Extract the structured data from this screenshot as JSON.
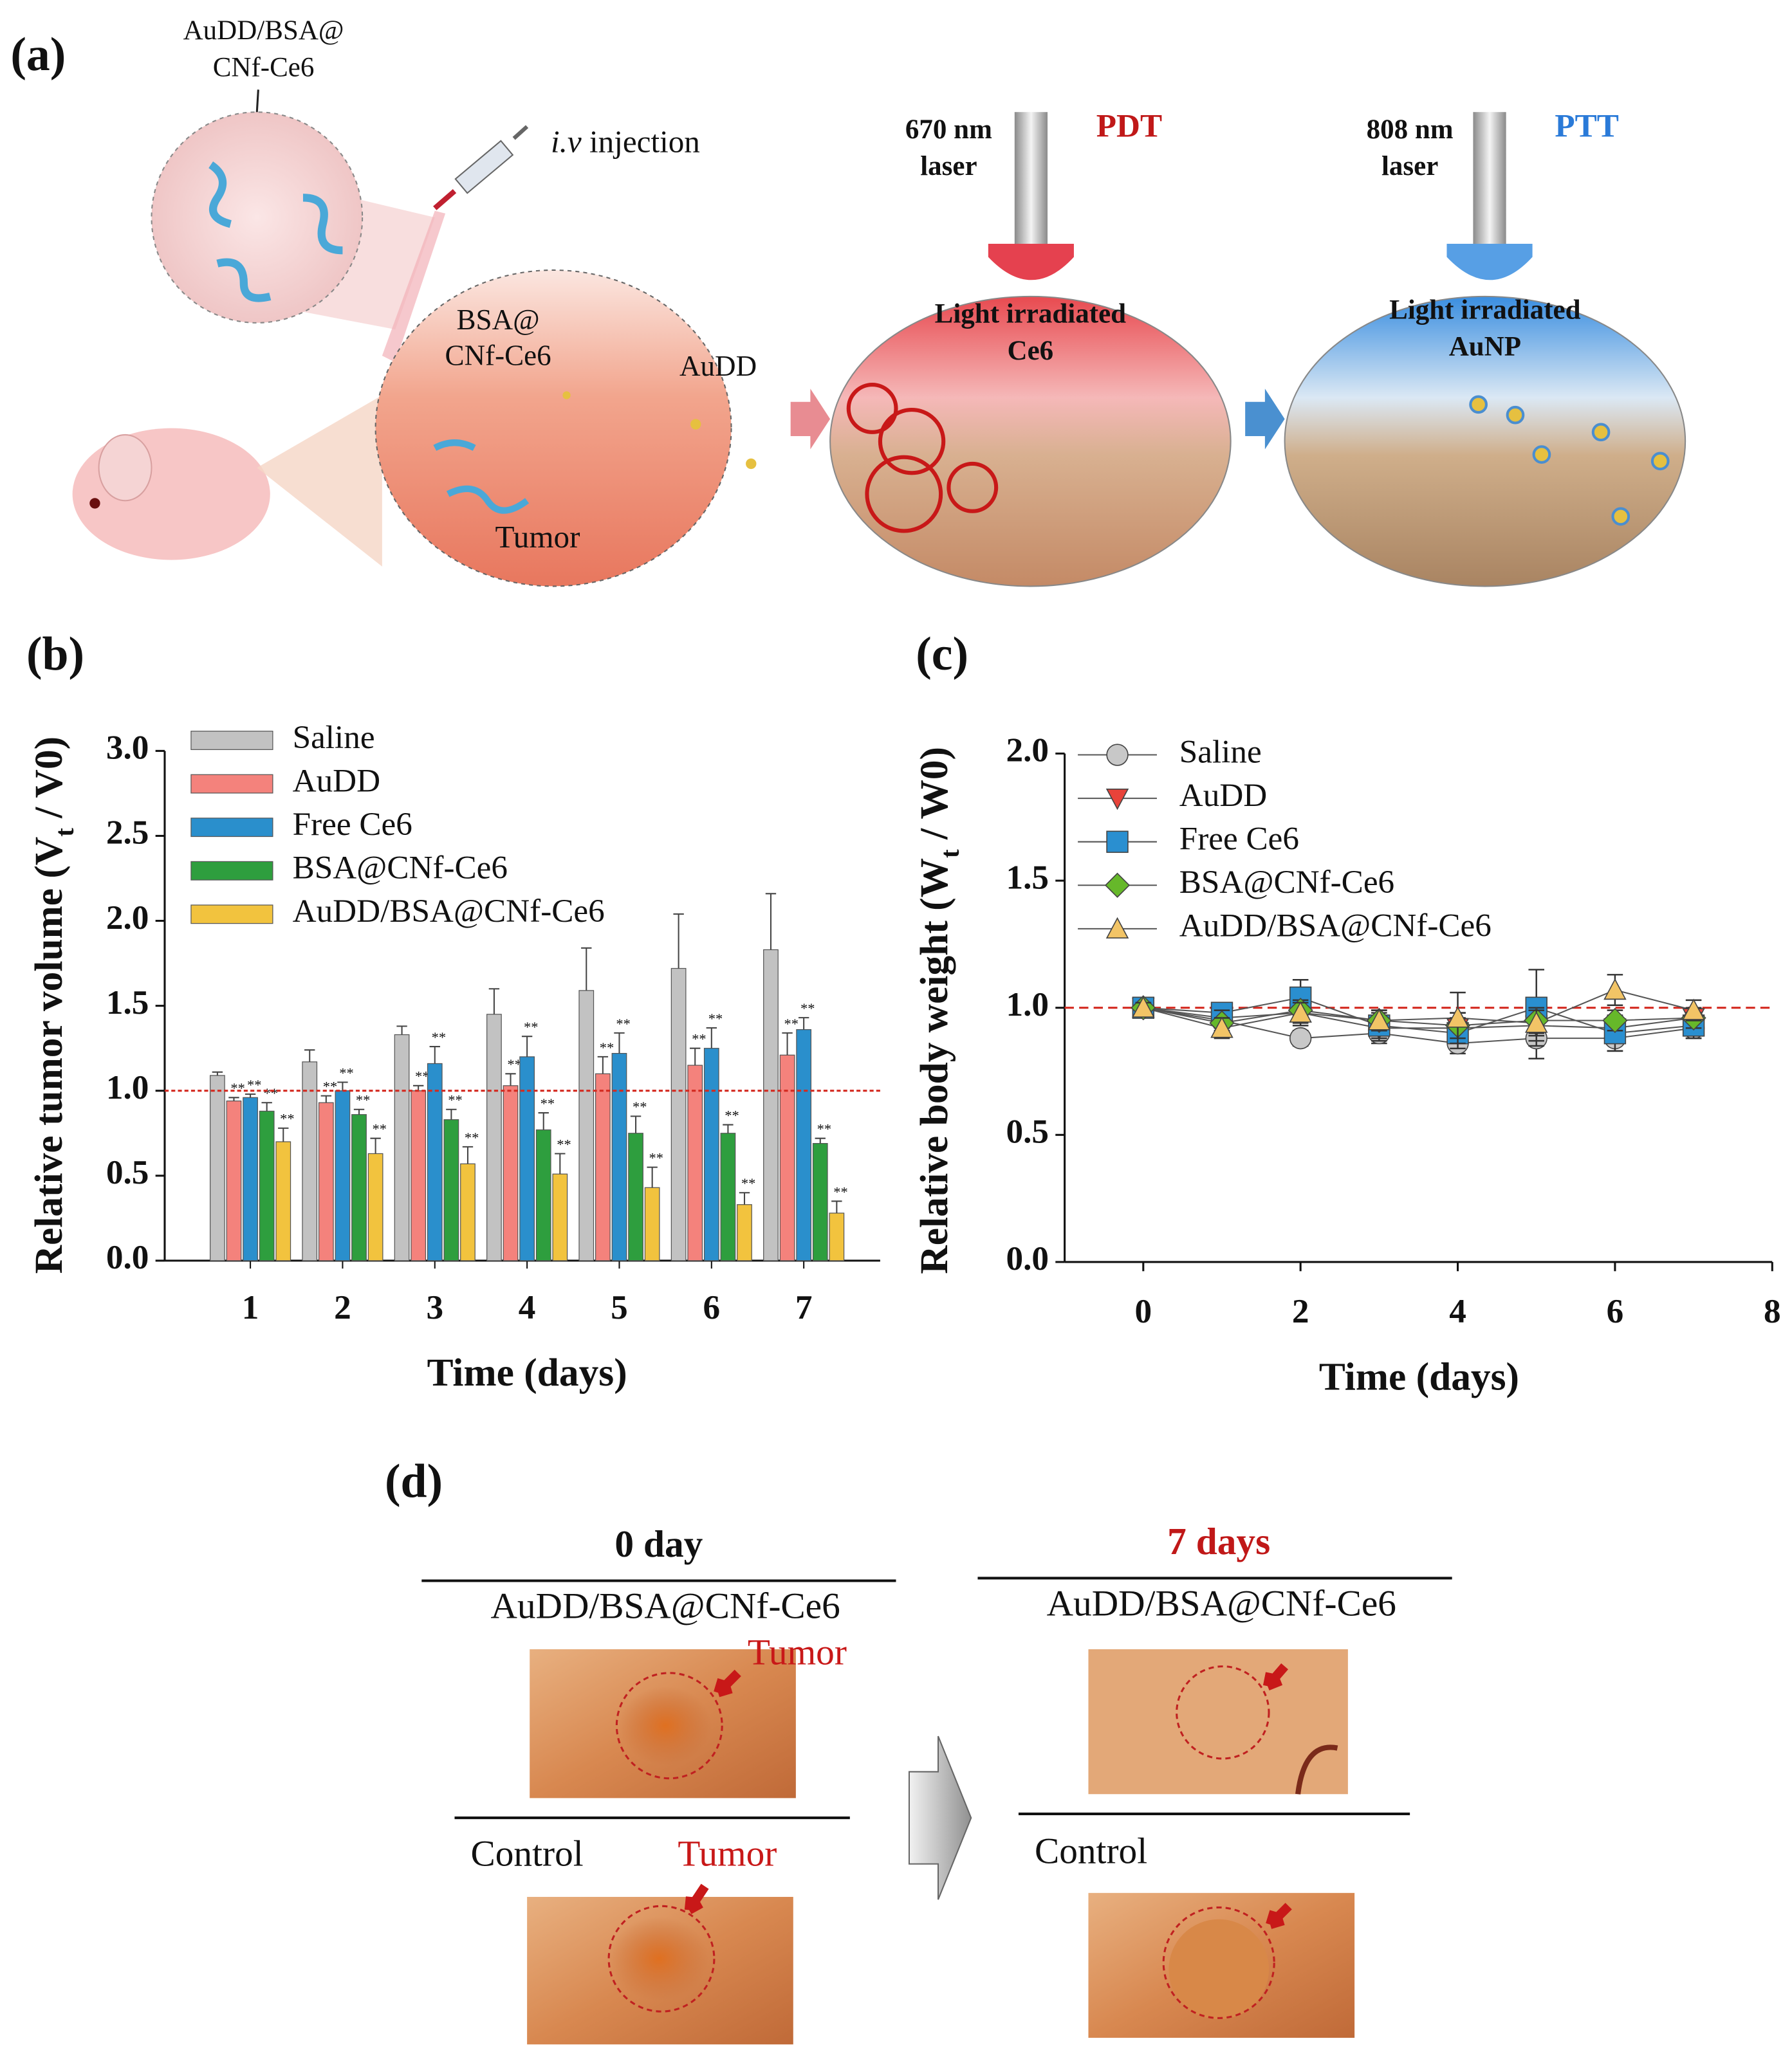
{
  "panel_a": {
    "label": "(a)",
    "agent": [
      "AuDD/BSA@",
      "CNf-Ce6"
    ],
    "injection": [
      "i.v",
      " injection"
    ],
    "pdt_laser": [
      "670 nm",
      "laser"
    ],
    "pdt": "PDT",
    "ptt_laser": [
      "808 nm",
      "laser"
    ],
    "ptt": "PTT",
    "bsa_label": [
      "BSA@",
      "CNf-Ce6"
    ],
    "audd": "AuDD",
    "tumor": "Tumor",
    "ce6_light": [
      "Light irradiated",
      "Ce6"
    ],
    "aunp_light": [
      "Light irradiated",
      "AuNP"
    ]
  },
  "chart_data": [
    {
      "type": "bar",
      "panel_label": "(b)",
      "xlabel": "Time (days)",
      "ylabel": [
        "Relative tumor volume (V",
        "t",
        " / V0)"
      ],
      "categories": [
        "1",
        "2",
        "3",
        "4",
        "5",
        "6",
        "7"
      ],
      "ylim": [
        0,
        3
      ],
      "yticks": [
        {
          "value": 0,
          "label": "0.0"
        },
        0.5,
        {
          "value": 1,
          "label": "1.0"
        },
        1.5,
        {
          "value": 2,
          "label": "2.0"
        },
        2.5,
        {
          "value": 3,
          "label": "3.0"
        }
      ],
      "reference_line": {
        "value": 1,
        "color": "#d42a20"
      },
      "significance_label": "**",
      "legend": "upper left",
      "series": [
        {
          "name": "Saline",
          "color": "#c2c2c2",
          "values": [
            1.09,
            1.17,
            1.33,
            1.45,
            1.59,
            1.72,
            1.83
          ],
          "errors": [
            0.02,
            0.07,
            0.05,
            0.15,
            0.25,
            0.32,
            0.33
          ]
        },
        {
          "name": "AuDD",
          "color": "#f4827c",
          "values": [
            0.94,
            0.93,
            1.0,
            1.03,
            1.1,
            1.15,
            1.21
          ],
          "errors": [
            0.02,
            0.04,
            0.03,
            0.07,
            0.1,
            0.1,
            0.13
          ]
        },
        {
          "name": "Free Ce6",
          "color": "#2a8fcc",
          "values": [
            0.96,
            1.0,
            1.16,
            1.2,
            1.22,
            1.25,
            1.36
          ],
          "errors": [
            0.02,
            0.05,
            0.1,
            0.12,
            0.12,
            0.12,
            0.07
          ]
        },
        {
          "name": "BSA@CNf-Ce6",
          "color": "#2e9e3e",
          "values": [
            0.88,
            0.86,
            0.83,
            0.77,
            0.75,
            0.75,
            0.69
          ],
          "errors": [
            0.05,
            0.03,
            0.06,
            0.1,
            0.1,
            0.05,
            0.03
          ]
        },
        {
          "name": "AuDD/BSA@CNf-Ce6",
          "color": "#f2c33e",
          "values": [
            0.7,
            0.63,
            0.57,
            0.51,
            0.43,
            0.33,
            0.28
          ],
          "errors": [
            0.08,
            0.09,
            0.1,
            0.12,
            0.12,
            0.07,
            0.07
          ]
        }
      ]
    },
    {
      "type": "line",
      "panel_label": "(c)",
      "xlabel": "Time (days)",
      "ylabel": [
        "Relative body weight (W",
        "t",
        " / W0)"
      ],
      "x": [
        0,
        1,
        2,
        3,
        4,
        5,
        6,
        7
      ],
      "xlim": [
        -1,
        8
      ],
      "xticks": [
        0,
        2,
        4,
        6,
        8
      ],
      "ylim": [
        0,
        2
      ],
      "yticks": [
        {
          "value": 0,
          "label": "0.0"
        },
        0.5,
        {
          "value": 1,
          "label": "1.0"
        },
        1.5,
        {
          "value": 2,
          "label": "2.0"
        }
      ],
      "reference_line": {
        "value": 1,
        "color": "#d42a20"
      },
      "legend": "upper left",
      "series": [
        {
          "name": "Saline",
          "color": "#c8c8c8",
          "marker": "circle",
          "values": [
            1.0,
            0.95,
            0.88,
            0.9,
            0.86,
            0.88,
            0.88,
            0.92
          ],
          "errors": [
            0.02,
            0.04,
            0.03,
            0.04,
            0.04,
            0.08,
            0.05,
            0.04
          ]
        },
        {
          "name": "AuDD",
          "color": "#e8433a",
          "marker": "triangle-down",
          "values": [
            1.0,
            0.96,
            0.98,
            0.92,
            0.92,
            0.93,
            0.92,
            0.96
          ],
          "errors": [
            0.02,
            0.04,
            0.05,
            0.05,
            0.06,
            0.06,
            0.05,
            0.04
          ]
        },
        {
          "name": "Free Ce6",
          "color": "#2a8fd0",
          "marker": "square",
          "values": [
            1.0,
            0.98,
            1.04,
            0.93,
            0.9,
            1.0,
            0.9,
            0.93
          ],
          "errors": [
            0.02,
            0.03,
            0.07,
            0.05,
            0.06,
            0.15,
            0.07,
            0.05
          ]
        },
        {
          "name": "BSA@CNf-Ce6",
          "color": "#66b82a",
          "marker": "diamond",
          "values": [
            1.0,
            0.94,
            0.99,
            0.95,
            0.93,
            0.95,
            0.95,
            0.96
          ],
          "errors": [
            0.02,
            0.05,
            0.04,
            0.04,
            0.05,
            0.05,
            0.04,
            0.04
          ]
        },
        {
          "name": "AuDD/BSA@CNf-Ce6",
          "color": "#f2c466",
          "marker": "triangle-up",
          "values": [
            1.0,
            0.92,
            0.98,
            0.95,
            0.96,
            0.94,
            1.07,
            0.99
          ],
          "errors": [
            0.02,
            0.04,
            0.04,
            0.04,
            0.1,
            0.05,
            0.06,
            0.04
          ]
        }
      ]
    }
  ],
  "panel_d": {
    "label": "(d)",
    "day0": "0 day",
    "day7": "7 days",
    "treated": "AuDD/BSA@CNf-Ce6",
    "control": "Control",
    "tumor": "Tumor"
  }
}
